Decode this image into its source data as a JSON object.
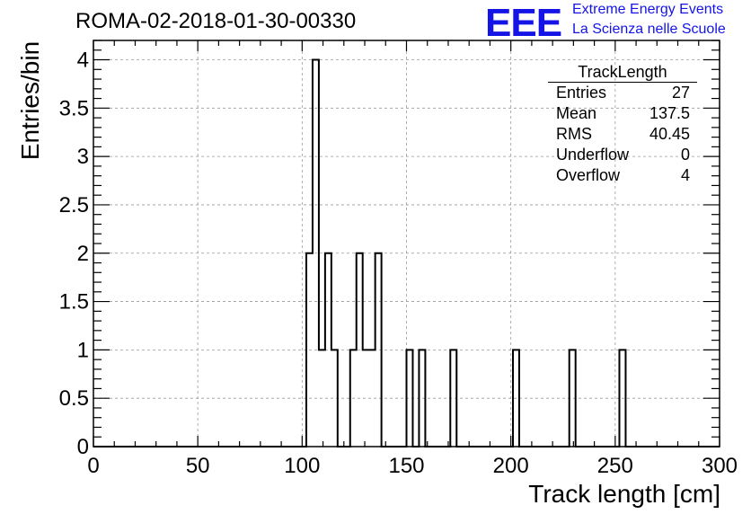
{
  "title": "ROMA-02-2018-01-30-00330",
  "logo": {
    "mark": "EEE",
    "line1": "Extreme Energy Events",
    "line2": "La Scienza nelle Scuole",
    "color": "#1414e6"
  },
  "stats": {
    "name": "TrackLength",
    "rows": [
      {
        "label": "Entries",
        "value": "27"
      },
      {
        "label": "Mean",
        "value": "137.5"
      },
      {
        "label": "RMS",
        "value": "40.45"
      },
      {
        "label": "Underflow",
        "value": "0"
      },
      {
        "label": "Overflow",
        "value": "4"
      }
    ]
  },
  "chart_data": {
    "type": "histogram",
    "title": "ROMA-02-2018-01-30-00330",
    "xlabel": "Track length [cm]",
    "ylabel": "Entries/bin",
    "xlim": [
      0,
      300
    ],
    "ylim": [
      0,
      4.2
    ],
    "bin_width": 3,
    "x_ticks": [
      "0",
      "50",
      "100",
      "150",
      "200",
      "250",
      "300"
    ],
    "y_ticks": [
      "0",
      "0.5",
      "1",
      "1.5",
      "2",
      "2.5",
      "3",
      "3.5",
      "4"
    ],
    "grid": true,
    "line_color": "#000000",
    "bins": [
      {
        "x0": 102,
        "x1": 105,
        "count": 2
      },
      {
        "x0": 105,
        "x1": 108,
        "count": 4
      },
      {
        "x0": 108,
        "x1": 111,
        "count": 1
      },
      {
        "x0": 111,
        "x1": 114,
        "count": 2
      },
      {
        "x0": 114,
        "x1": 117,
        "count": 1
      },
      {
        "x0": 123,
        "x1": 126,
        "count": 1
      },
      {
        "x0": 126,
        "x1": 129,
        "count": 2
      },
      {
        "x0": 129,
        "x1": 132,
        "count": 1
      },
      {
        "x0": 132,
        "x1": 135,
        "count": 1
      },
      {
        "x0": 135,
        "x1": 138,
        "count": 2
      },
      {
        "x0": 150,
        "x1": 153,
        "count": 1
      },
      {
        "x0": 156,
        "x1": 159,
        "count": 1
      },
      {
        "x0": 171,
        "x1": 174,
        "count": 1
      },
      {
        "x0": 201,
        "x1": 204,
        "count": 1
      },
      {
        "x0": 228,
        "x1": 231,
        "count": 1
      },
      {
        "x0": 252,
        "x1": 255,
        "count": 1
      }
    ]
  }
}
